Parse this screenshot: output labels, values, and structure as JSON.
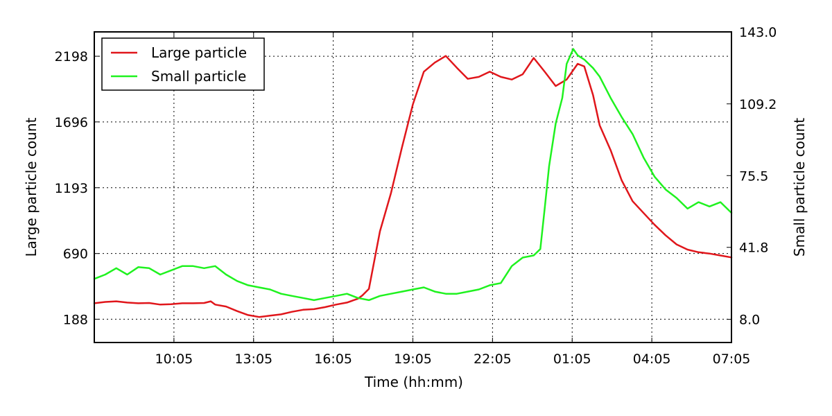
{
  "chart_data": {
    "type": "line",
    "xlabel": "Time (hh:mm)",
    "ylabel_left": "Large particle count",
    "ylabel_right": "Small particle count",
    "x_tick_labels": [
      "10:05",
      "13:05",
      "16:05",
      "19:05",
      "22:05",
      "01:05",
      "04:05",
      "07:05"
    ],
    "x_tick_hours": [
      3,
      6,
      9,
      12,
      15,
      18,
      21,
      24
    ],
    "x_range_hours": [
      0,
      24
    ],
    "x_start_clock": "07:05",
    "y_left": {
      "ticks": [
        188,
        690,
        1193,
        1696,
        2198
      ],
      "range": [
        10,
        2384
      ]
    },
    "y_right": {
      "ticks": [
        "8.0",
        "41.8",
        "75.5",
        "109.2",
        "143.0"
      ],
      "range": [
        -2.9,
        143.0
      ]
    },
    "grid": true,
    "legend_position": "top-left",
    "series": [
      {
        "name": "Large particle",
        "color": "#e0161b",
        "axis": "left",
        "points": [
          [
            0,
            310
          ],
          [
            0.5,
            320
          ],
          [
            1,
            325
          ],
          [
            1.5,
            315
          ],
          [
            2,
            310
          ],
          [
            2.5,
            312
          ],
          [
            3,
            300
          ],
          [
            3.5,
            303
          ],
          [
            4,
            310
          ],
          [
            4.5,
            310
          ],
          [
            5,
            312
          ],
          [
            5.3,
            325
          ],
          [
            5.5,
            300
          ],
          [
            6,
            285
          ],
          [
            6.5,
            250
          ],
          [
            7,
            220
          ],
          [
            7.5,
            205
          ],
          [
            8,
            215
          ],
          [
            8.5,
            225
          ],
          [
            9,
            245
          ],
          [
            9.5,
            260
          ],
          [
            10,
            265
          ],
          [
            10.5,
            280
          ],
          [
            11,
            300
          ],
          [
            11.5,
            315
          ],
          [
            12,
            345
          ],
          [
            12.2,
            370
          ],
          [
            12.5,
            420
          ],
          [
            13,
            860
          ],
          [
            13.5,
            1150
          ],
          [
            14,
            1500
          ],
          [
            14.5,
            1830
          ],
          [
            15,
            2080
          ],
          [
            15.5,
            2150
          ],
          [
            16,
            2200
          ],
          [
            16.5,
            2110
          ],
          [
            17,
            2025
          ],
          [
            17.5,
            2040
          ],
          [
            18,
            2080
          ],
          [
            18.5,
            2040
          ],
          [
            19,
            2020
          ],
          [
            19.5,
            2060
          ],
          [
            20,
            2185
          ],
          [
            20.5,
            2080
          ],
          [
            21,
            1970
          ],
          [
            21.5,
            2020
          ],
          [
            22,
            2140
          ],
          [
            22.3,
            2120
          ],
          [
            22.7,
            1900
          ],
          [
            23,
            1670
          ],
          [
            23.5,
            1480
          ],
          [
            24,
            1250
          ],
          [
            24.5,
            1090
          ],
          [
            25,
            1000
          ],
          [
            25.5,
            910
          ],
          [
            26,
            830
          ],
          [
            26.5,
            760
          ],
          [
            27,
            720
          ],
          [
            27.5,
            700
          ],
          [
            28,
            690
          ],
          [
            28.5,
            675
          ],
          [
            29,
            660
          ]
        ]
      },
      {
        "name": "Small particle",
        "color": "#1ff21f",
        "axis": "right",
        "points": [
          [
            0,
            27
          ],
          [
            0.5,
            29
          ],
          [
            1,
            32
          ],
          [
            1.5,
            29
          ],
          [
            2,
            32.5
          ],
          [
            2.5,
            32
          ],
          [
            3,
            29
          ],
          [
            3.5,
            31
          ],
          [
            4,
            33
          ],
          [
            4.5,
            33
          ],
          [
            5,
            32
          ],
          [
            5.5,
            33
          ],
          [
            6,
            29
          ],
          [
            6.5,
            26
          ],
          [
            7,
            24
          ],
          [
            7.5,
            23
          ],
          [
            8,
            22
          ],
          [
            8.5,
            20
          ],
          [
            9,
            19
          ],
          [
            9.5,
            18
          ],
          [
            10,
            17
          ],
          [
            10.5,
            18
          ],
          [
            11,
            19
          ],
          [
            11.5,
            20
          ],
          [
            12,
            18
          ],
          [
            12.5,
            17
          ],
          [
            13,
            19
          ],
          [
            13.5,
            20
          ],
          [
            14,
            21
          ],
          [
            14.5,
            22
          ],
          [
            15,
            23
          ],
          [
            15.5,
            21
          ],
          [
            16,
            20
          ],
          [
            16.5,
            20
          ],
          [
            17,
            21
          ],
          [
            17.5,
            22
          ],
          [
            18,
            24
          ],
          [
            18.5,
            25
          ],
          [
            19,
            33
          ],
          [
            19.5,
            37
          ],
          [
            20,
            38
          ],
          [
            20.3,
            41
          ],
          [
            20.5,
            60
          ],
          [
            20.7,
            80
          ],
          [
            21,
            100
          ],
          [
            21.3,
            112
          ],
          [
            21.5,
            128
          ],
          [
            21.8,
            135
          ],
          [
            22,
            132
          ],
          [
            22.3,
            130
          ],
          [
            22.7,
            126
          ],
          [
            23,
            122
          ],
          [
            23.5,
            112
          ],
          [
            24,
            103
          ],
          [
            24.5,
            95
          ],
          [
            25,
            84
          ],
          [
            25.5,
            75
          ],
          [
            26,
            69
          ],
          [
            26.5,
            65
          ],
          [
            27,
            60
          ],
          [
            27.5,
            63
          ],
          [
            28,
            61
          ],
          [
            28.5,
            63
          ],
          [
            29,
            58
          ]
        ]
      }
    ]
  }
}
